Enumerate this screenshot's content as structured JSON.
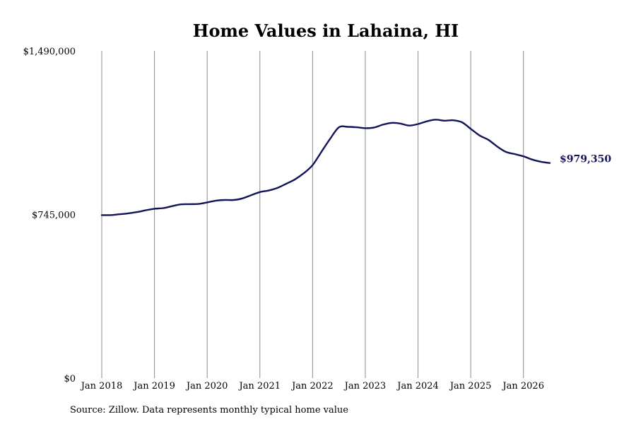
{
  "chart_data": {
    "type": "line",
    "title": "Home Values in Lahaina, HI",
    "source": "Source: Zillow. Data represents monthly typical home value",
    "ylim": [
      0,
      1490000
    ],
    "yticks": [
      {
        "value": 0,
        "label": "$0"
      },
      {
        "value": 745000,
        "label": "$745,000"
      },
      {
        "value": 1490000,
        "label": "$1,490,000"
      }
    ],
    "xlim": [
      "2018-01",
      "2026-07"
    ],
    "xticks": [
      "Jan 2018",
      "Jan 2019",
      "Jan 2020",
      "Jan 2021",
      "Jan 2022",
      "Jan 2023",
      "Jan 2024",
      "Jan 2025",
      "Jan 2026"
    ],
    "xtick_dates": [
      "2018-01",
      "2019-01",
      "2020-01",
      "2021-01",
      "2022-01",
      "2023-01",
      "2024-01",
      "2025-01",
      "2026-01"
    ],
    "grid": "vertical",
    "line_color": "#14145a",
    "end_label": "$979,350",
    "series": [
      {
        "x": [
          "2018-01",
          "2018-03",
          "2018-05",
          "2018-07",
          "2018-09",
          "2018-11",
          "2019-01",
          "2019-03",
          "2019-05",
          "2019-07",
          "2019-09",
          "2019-11",
          "2020-01",
          "2020-03",
          "2020-05",
          "2020-07",
          "2020-09",
          "2020-11",
          "2021-01",
          "2021-03",
          "2021-05",
          "2021-07",
          "2021-09",
          "2021-11",
          "2022-01",
          "2022-03",
          "2022-05",
          "2022-07",
          "2022-09",
          "2022-11",
          "2023-01",
          "2023-03",
          "2023-05",
          "2023-07",
          "2023-09",
          "2023-11",
          "2024-01",
          "2024-03",
          "2024-05",
          "2024-07",
          "2024-09",
          "2024-11",
          "2025-01",
          "2025-03",
          "2025-05",
          "2025-07",
          "2025-09",
          "2025-11",
          "2026-01",
          "2026-03",
          "2026-05",
          "2026-07"
        ],
        "values": [
          742000,
          742000,
          746000,
          750000,
          756000,
          764000,
          771000,
          774000,
          783000,
          791000,
          792000,
          793000,
          800000,
          808000,
          811000,
          811000,
          818000,
          833000,
          847000,
          854000,
          866000,
          885000,
          905000,
          933000,
          970000,
          1030000,
          1090000,
          1142000,
          1144000,
          1142000,
          1138000,
          1141000,
          1154000,
          1162000,
          1159000,
          1150000,
          1157000,
          1169000,
          1177000,
          1172000,
          1174000,
          1165000,
          1135000,
          1105000,
          1085000,
          1055000,
          1030000,
          1020000,
          1010000,
          995000,
          985000,
          979350
        ]
      }
    ]
  }
}
